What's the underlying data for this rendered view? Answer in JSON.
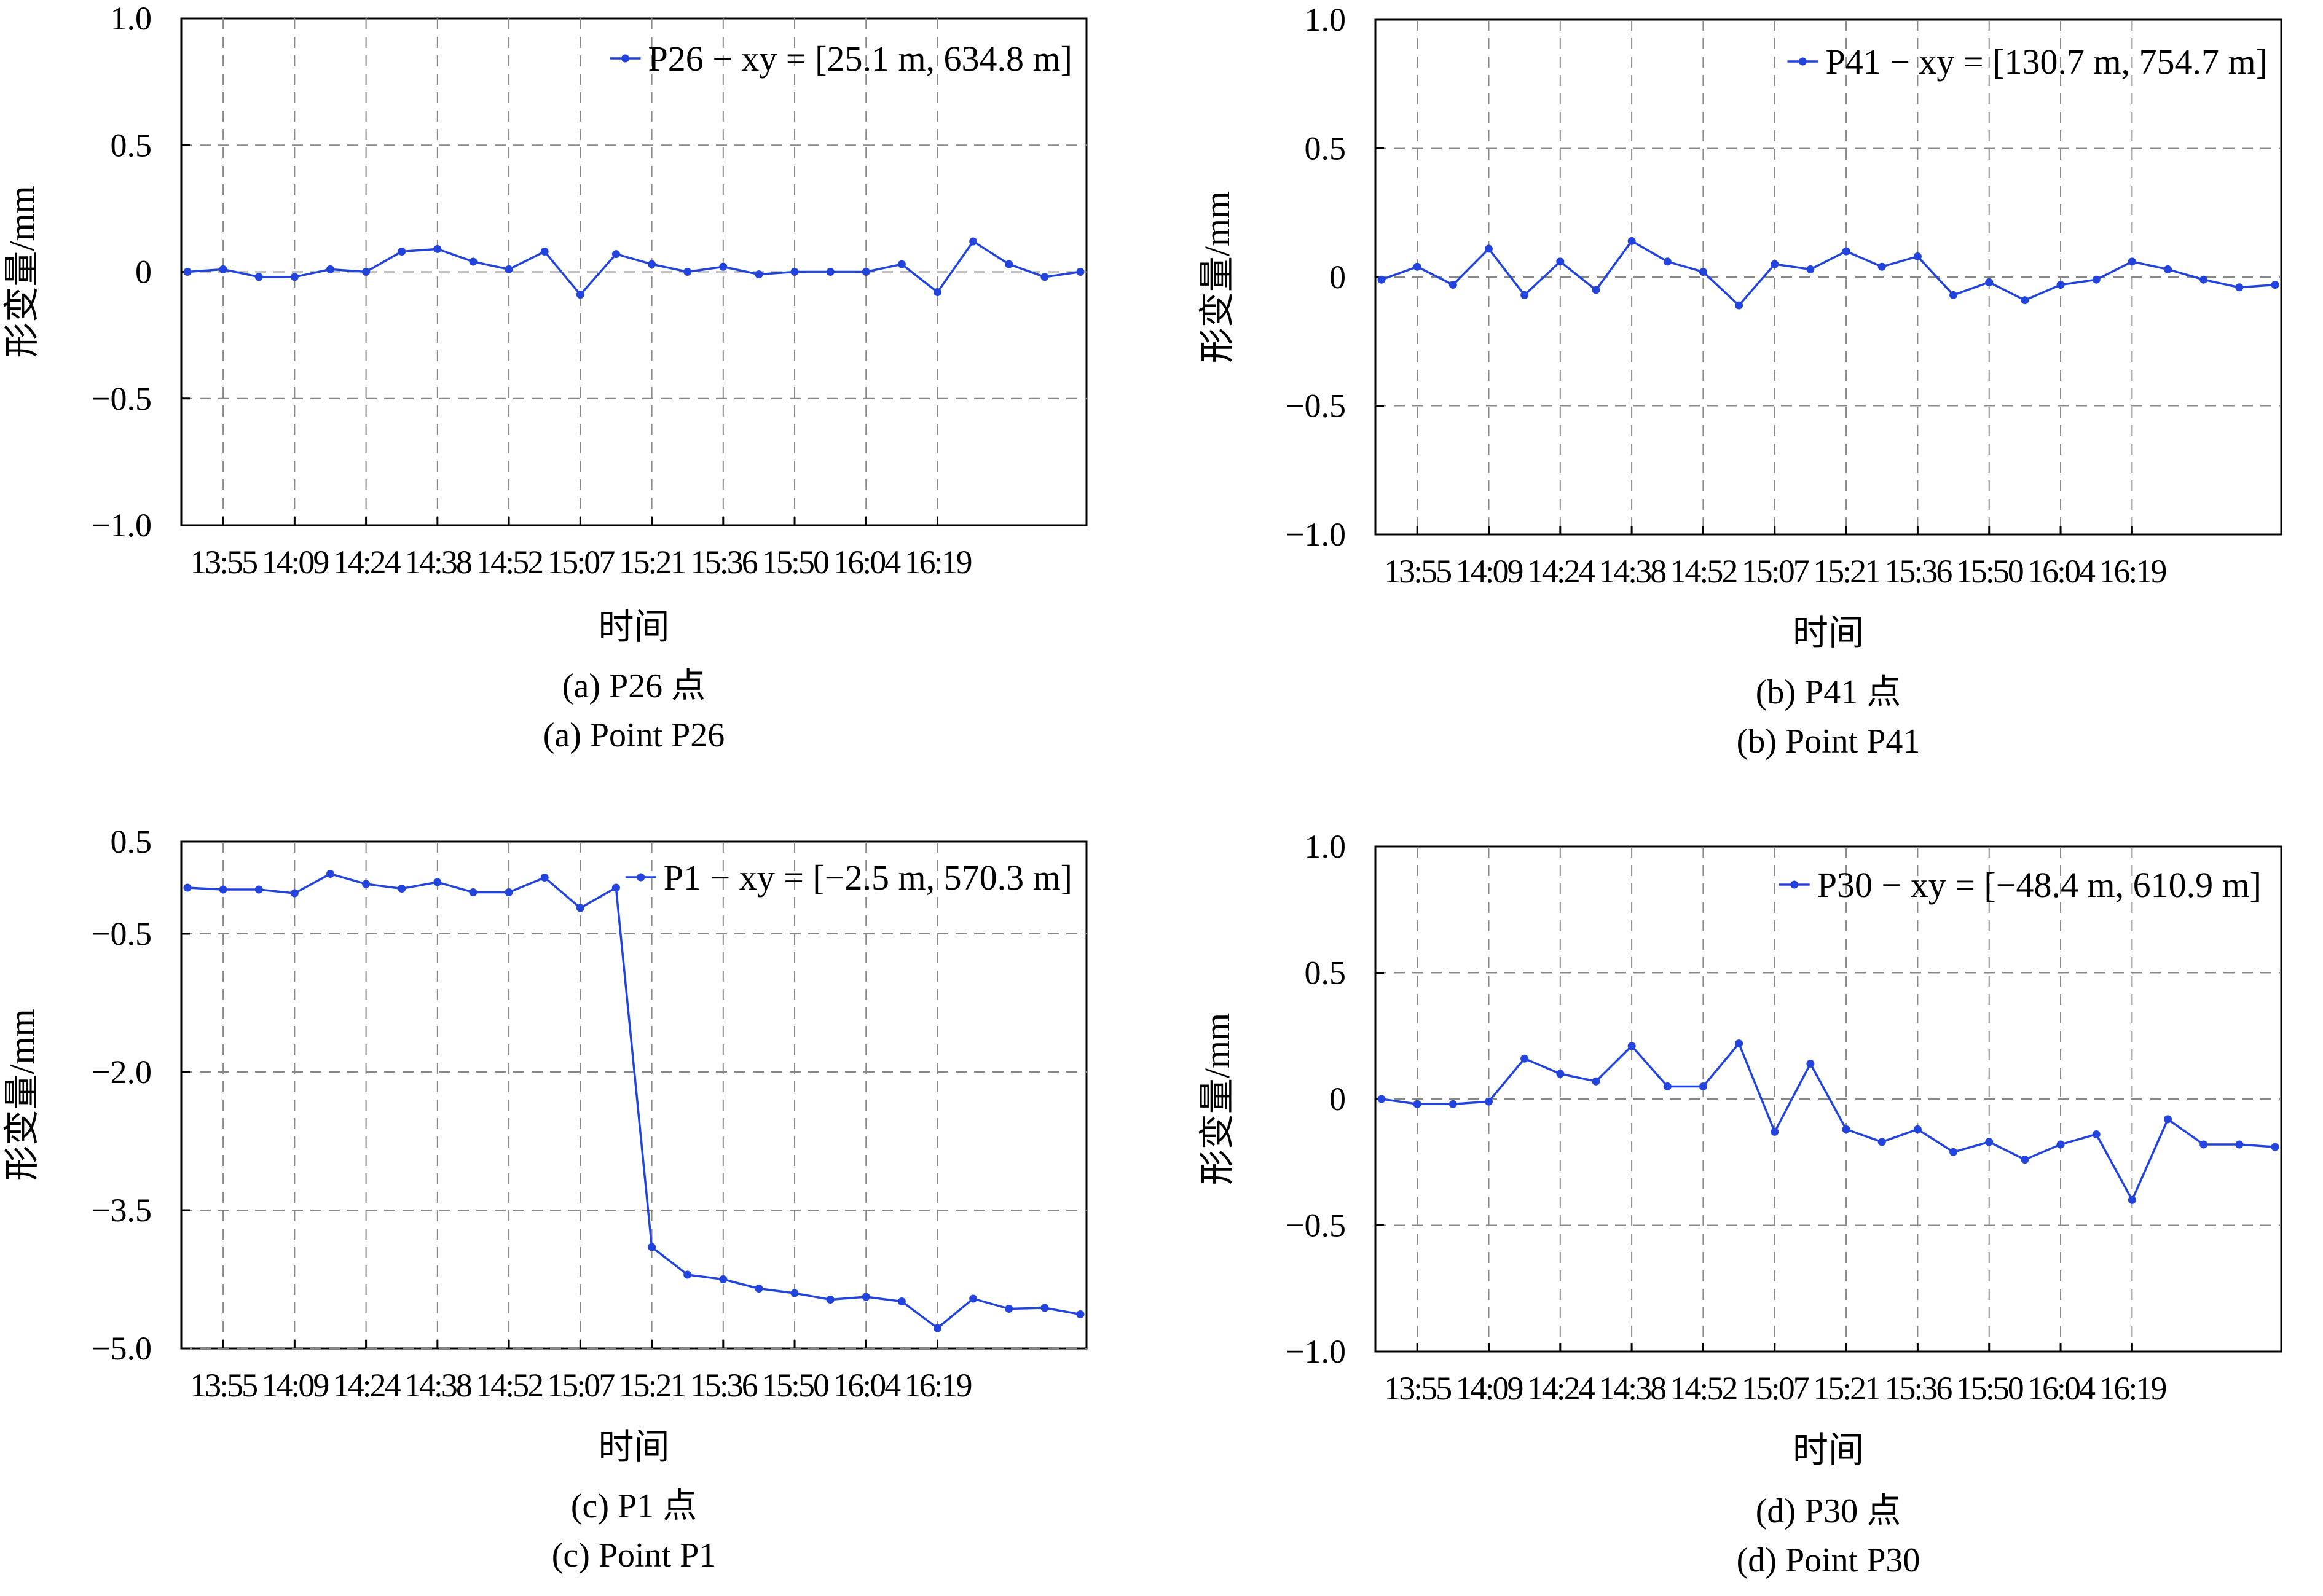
{
  "chart_data": [
    {
      "type": "line",
      "caption_cn": "(a) P26 点",
      "caption_en": "(a) Point P26",
      "legend": "P26 − xy = [25.1 m, 634.8 m]",
      "xlabel": "时间",
      "ylabel": "形变量/mm",
      "ylim": [
        -1.0,
        1.0
      ],
      "yticks": [
        -1.0,
        -0.5,
        0,
        0.5,
        1.0
      ],
      "ytick_labels": [
        "−1.0",
        "−0.5",
        "0",
        "0.5",
        "1.0"
      ],
      "xticks": [
        "13:55",
        "14:09",
        "14:24",
        "14:38",
        "14:52",
        "15:07",
        "15:21",
        "15:36",
        "15:50",
        "16:04",
        "16:19"
      ],
      "series_color": "#2244dd",
      "values": [
        0,
        0.01,
        -0.02,
        -0.02,
        0.01,
        0,
        0.08,
        0.09,
        0.04,
        0.01,
        0.08,
        -0.09,
        0.07,
        0.03,
        0,
        0.02,
        -0.01,
        0,
        0,
        0,
        0.03,
        -0.08,
        0.12,
        0.03,
        -0.02,
        0
      ]
    },
    {
      "type": "line",
      "caption_cn": "(b) P41 点",
      "caption_en": "(b) Point P41",
      "legend": "P41 − xy = [130.7 m, 754.7 m]",
      "xlabel": "时间",
      "ylabel": "形变量/mm",
      "ylim": [
        -1.0,
        1.0
      ],
      "yticks": [
        -1.0,
        -0.5,
        0,
        0.5,
        1.0
      ],
      "ytick_labels": [
        "−1.0",
        "−0.5",
        "0",
        "0.5",
        "1.0"
      ],
      "xticks": [
        "13:55",
        "14:09",
        "14:24",
        "14:38",
        "14:52",
        "15:07",
        "15:21",
        "15:36",
        "15:50",
        "16:04",
        "16:19"
      ],
      "series_color": "#2244dd",
      "values": [
        -0.01,
        0.04,
        -0.03,
        0.11,
        -0.07,
        0.06,
        -0.05,
        0.14,
        0.06,
        0.02,
        -0.11,
        0.05,
        0.03,
        0.1,
        0.04,
        0.08,
        -0.07,
        -0.02,
        -0.09,
        -0.03,
        -0.01,
        0.06,
        0.03,
        -0.01,
        -0.04,
        -0.03
      ]
    },
    {
      "type": "line",
      "caption_cn": "(c) P1 点",
      "caption_en": "(c) Point P1",
      "legend": "P1 − xy = [−2.5 m, 570.3 m]",
      "xlabel": "时间",
      "ylabel": "形变量/mm",
      "ylim": [
        -5.0,
        0.5
      ],
      "yticks": [
        -5.0,
        -3.5,
        -2.0,
        -0.5,
        0.5
      ],
      "ytick_labels": [
        "−5.0",
        "−3.5",
        "−2.0",
        "−0.5",
        "0.5"
      ],
      "gridlines": [
        -5.0,
        -3.5,
        -2.0,
        -0.5
      ],
      "xticks": [
        "13:55",
        "14:09",
        "14:24",
        "14:38",
        "14:52",
        "15:07",
        "15:21",
        "15:36",
        "15:50",
        "16:04",
        "16:19"
      ],
      "series_color": "#2244dd",
      "values": [
        0,
        -0.02,
        -0.02,
        -0.06,
        0.15,
        0.04,
        -0.01,
        0.06,
        -0.05,
        -0.05,
        0.11,
        -0.22,
        0,
        -3.9,
        -4.2,
        -4.25,
        -4.35,
        -4.4,
        -4.47,
        -4.44,
        -4.49,
        -4.78,
        -4.46,
        -4.57,
        -4.56,
        -4.63
      ]
    },
    {
      "type": "line",
      "caption_cn": "(d) P30 点",
      "caption_en": "(d) Point P30",
      "legend": "P30 − xy = [−48.4 m, 610.9 m]",
      "xlabel": "时间",
      "ylabel": "形变量/mm",
      "ylim": [
        -1.0,
        1.0
      ],
      "yticks": [
        -1.0,
        -0.5,
        0,
        0.5,
        1.0
      ],
      "ytick_labels": [
        "−1.0",
        "−0.5",
        "0",
        "0.5",
        "1.0"
      ],
      "xticks": [
        "13:55",
        "14:09",
        "14:24",
        "14:38",
        "14:52",
        "15:07",
        "15:21",
        "15:36",
        "15:50",
        "16:04",
        "16:19"
      ],
      "series_color": "#2244dd",
      "values": [
        0,
        -0.02,
        -0.02,
        -0.01,
        0.16,
        0.1,
        0.07,
        0.21,
        0.05,
        0.05,
        0.22,
        -0.13,
        0.14,
        -0.12,
        -0.17,
        -0.12,
        -0.21,
        -0.17,
        -0.24,
        -0.18,
        -0.14,
        -0.4,
        -0.08,
        -0.18,
        -0.18,
        -0.19
      ]
    }
  ]
}
